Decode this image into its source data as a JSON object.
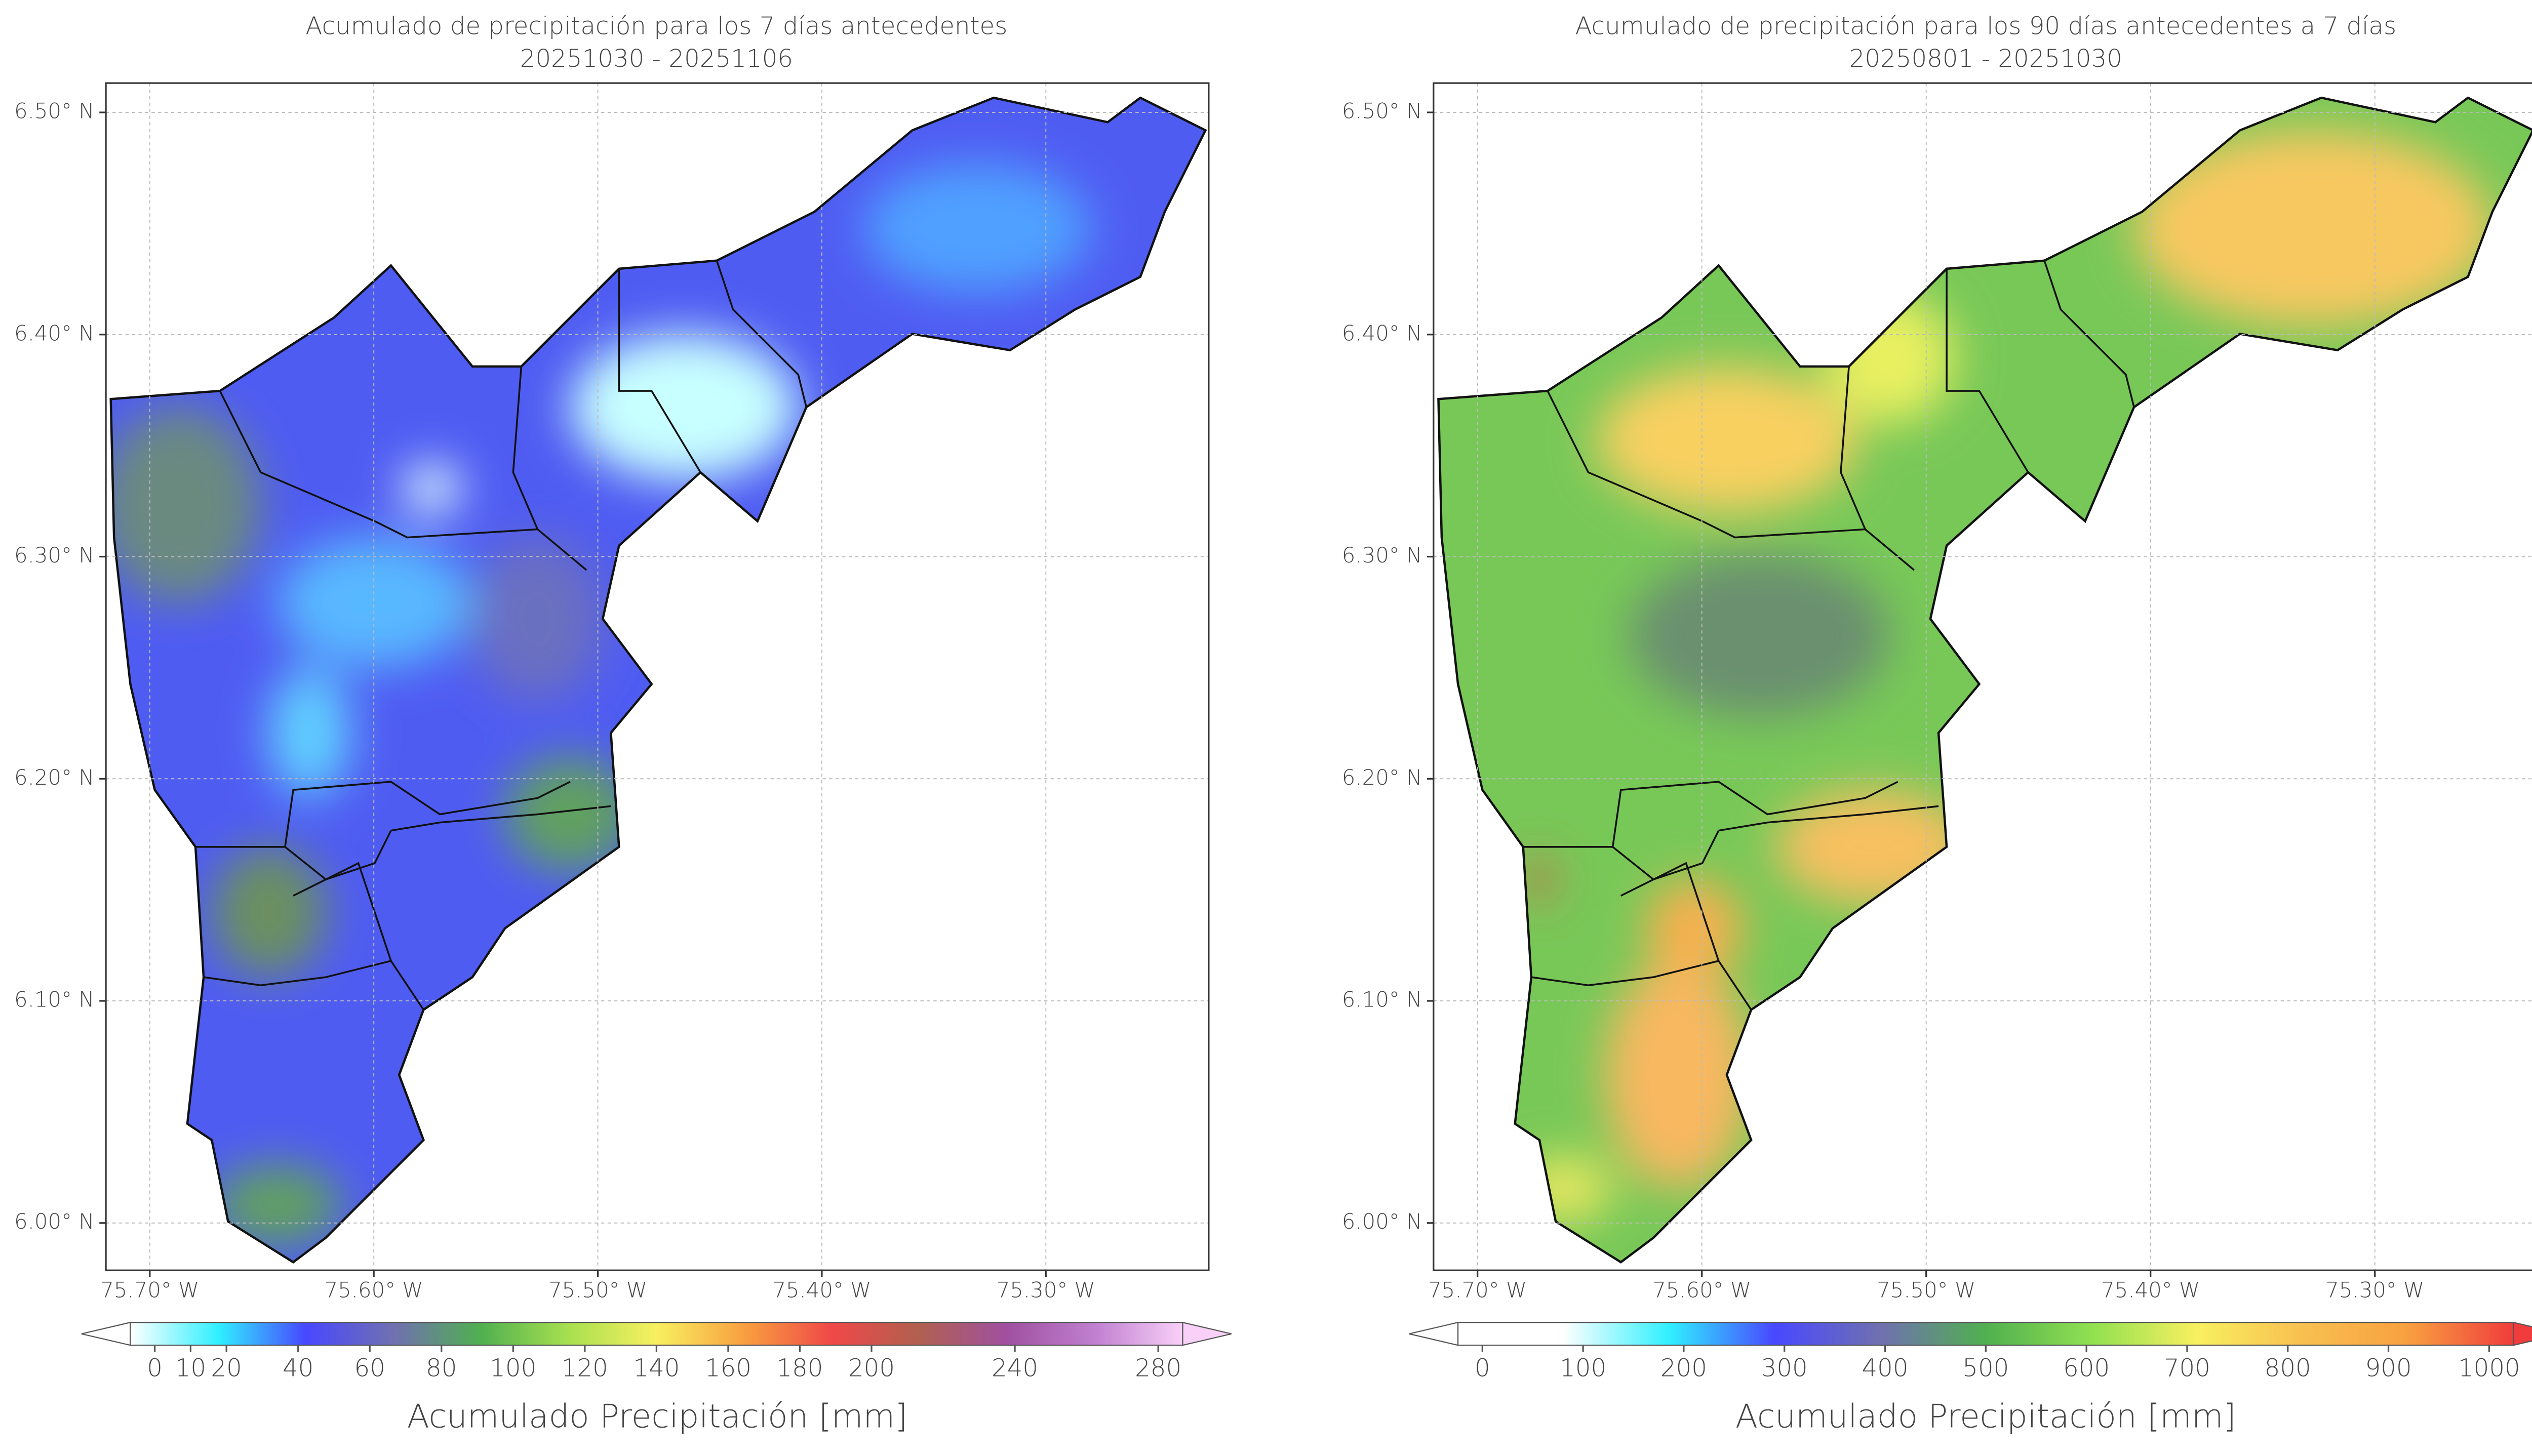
{
  "maps": [
    {
      "title": "Acumulado de precipitación para los 7 días antecedentes",
      "subtitle": "20251030 - 20251106",
      "xlim": [
        -75.7196,
        -75.2273
      ],
      "ylim": [
        5.9787,
        6.5132
      ],
      "xticks": [
        {
          "value": -75.7,
          "label": "75.70° W"
        },
        {
          "value": -75.6,
          "label": "75.60° W"
        },
        {
          "value": -75.5,
          "label": "75.50° W"
        },
        {
          "value": -75.4,
          "label": "75.40° W"
        },
        {
          "value": -75.3,
          "label": "75.30° W"
        }
      ],
      "yticks": [
        {
          "value": 6.5,
          "label": "6.50° N"
        },
        {
          "value": 6.4,
          "label": "6.40° N"
        },
        {
          "value": 6.3,
          "label": "6.30° N"
        },
        {
          "value": 6.2,
          "label": "6.20° N"
        },
        {
          "value": 6.1,
          "label": "6.10° N"
        },
        {
          "value": 6.0,
          "label": "6.00° N"
        }
      ],
      "grid": true,
      "colorbar": {
        "label": "Acumulado Precipitación [mm]",
        "lim": [
          0,
          280
        ],
        "ticks": [
          0,
          10,
          20,
          40,
          60,
          80,
          100,
          120,
          140,
          160,
          180,
          200,
          240,
          280
        ],
        "colors": [
          "#ffffff",
          "#30f0ff",
          "#4848ff",
          "#7070b0",
          "#50b050",
          "#a8e050",
          "#f8f060",
          "#f8a040",
          "#f04848",
          "#b06050",
          "#a050a0",
          "#c080d0",
          "#f8d0f8"
        ]
      }
    },
    {
      "title": "Acumulado de precipitación para los 90 días antecedentes a 7 días",
      "subtitle": "20250801 - 20251030",
      "xlim": [
        -75.7196,
        -75.2273
      ],
      "ylim": [
        5.9787,
        6.5132
      ],
      "xticks": [
        {
          "value": -75.7,
          "label": "75.70° W"
        },
        {
          "value": -75.6,
          "label": "75.60° W"
        },
        {
          "value": -75.5,
          "label": "75.50° W"
        },
        {
          "value": -75.4,
          "label": "75.40° W"
        },
        {
          "value": -75.3,
          "label": "75.30° W"
        }
      ],
      "yticks": [
        {
          "value": 6.5,
          "label": "6.50° N"
        },
        {
          "value": 6.4,
          "label": "6.40° N"
        },
        {
          "value": 6.3,
          "label": "6.30° N"
        },
        {
          "value": 6.2,
          "label": "6.20° N"
        },
        {
          "value": 6.1,
          "label": "6.10° N"
        },
        {
          "value": 6.0,
          "label": "6.00° N"
        }
      ],
      "grid": true,
      "colorbar": {
        "label": "Acumulado Precipitación [mm]",
        "lim": [
          0,
          1000
        ],
        "ticks": [
          0,
          100,
          200,
          300,
          400,
          500,
          600,
          700,
          800,
          900,
          1000
        ],
        "colors": [
          "#ffffff",
          "#ffffff",
          "#30f0ff",
          "#4848ff",
          "#7070b0",
          "#50b050",
          "#90e050",
          "#f8f060",
          "#f8c050",
          "#f8a040",
          "#f03c3c"
        ]
      }
    }
  ]
}
